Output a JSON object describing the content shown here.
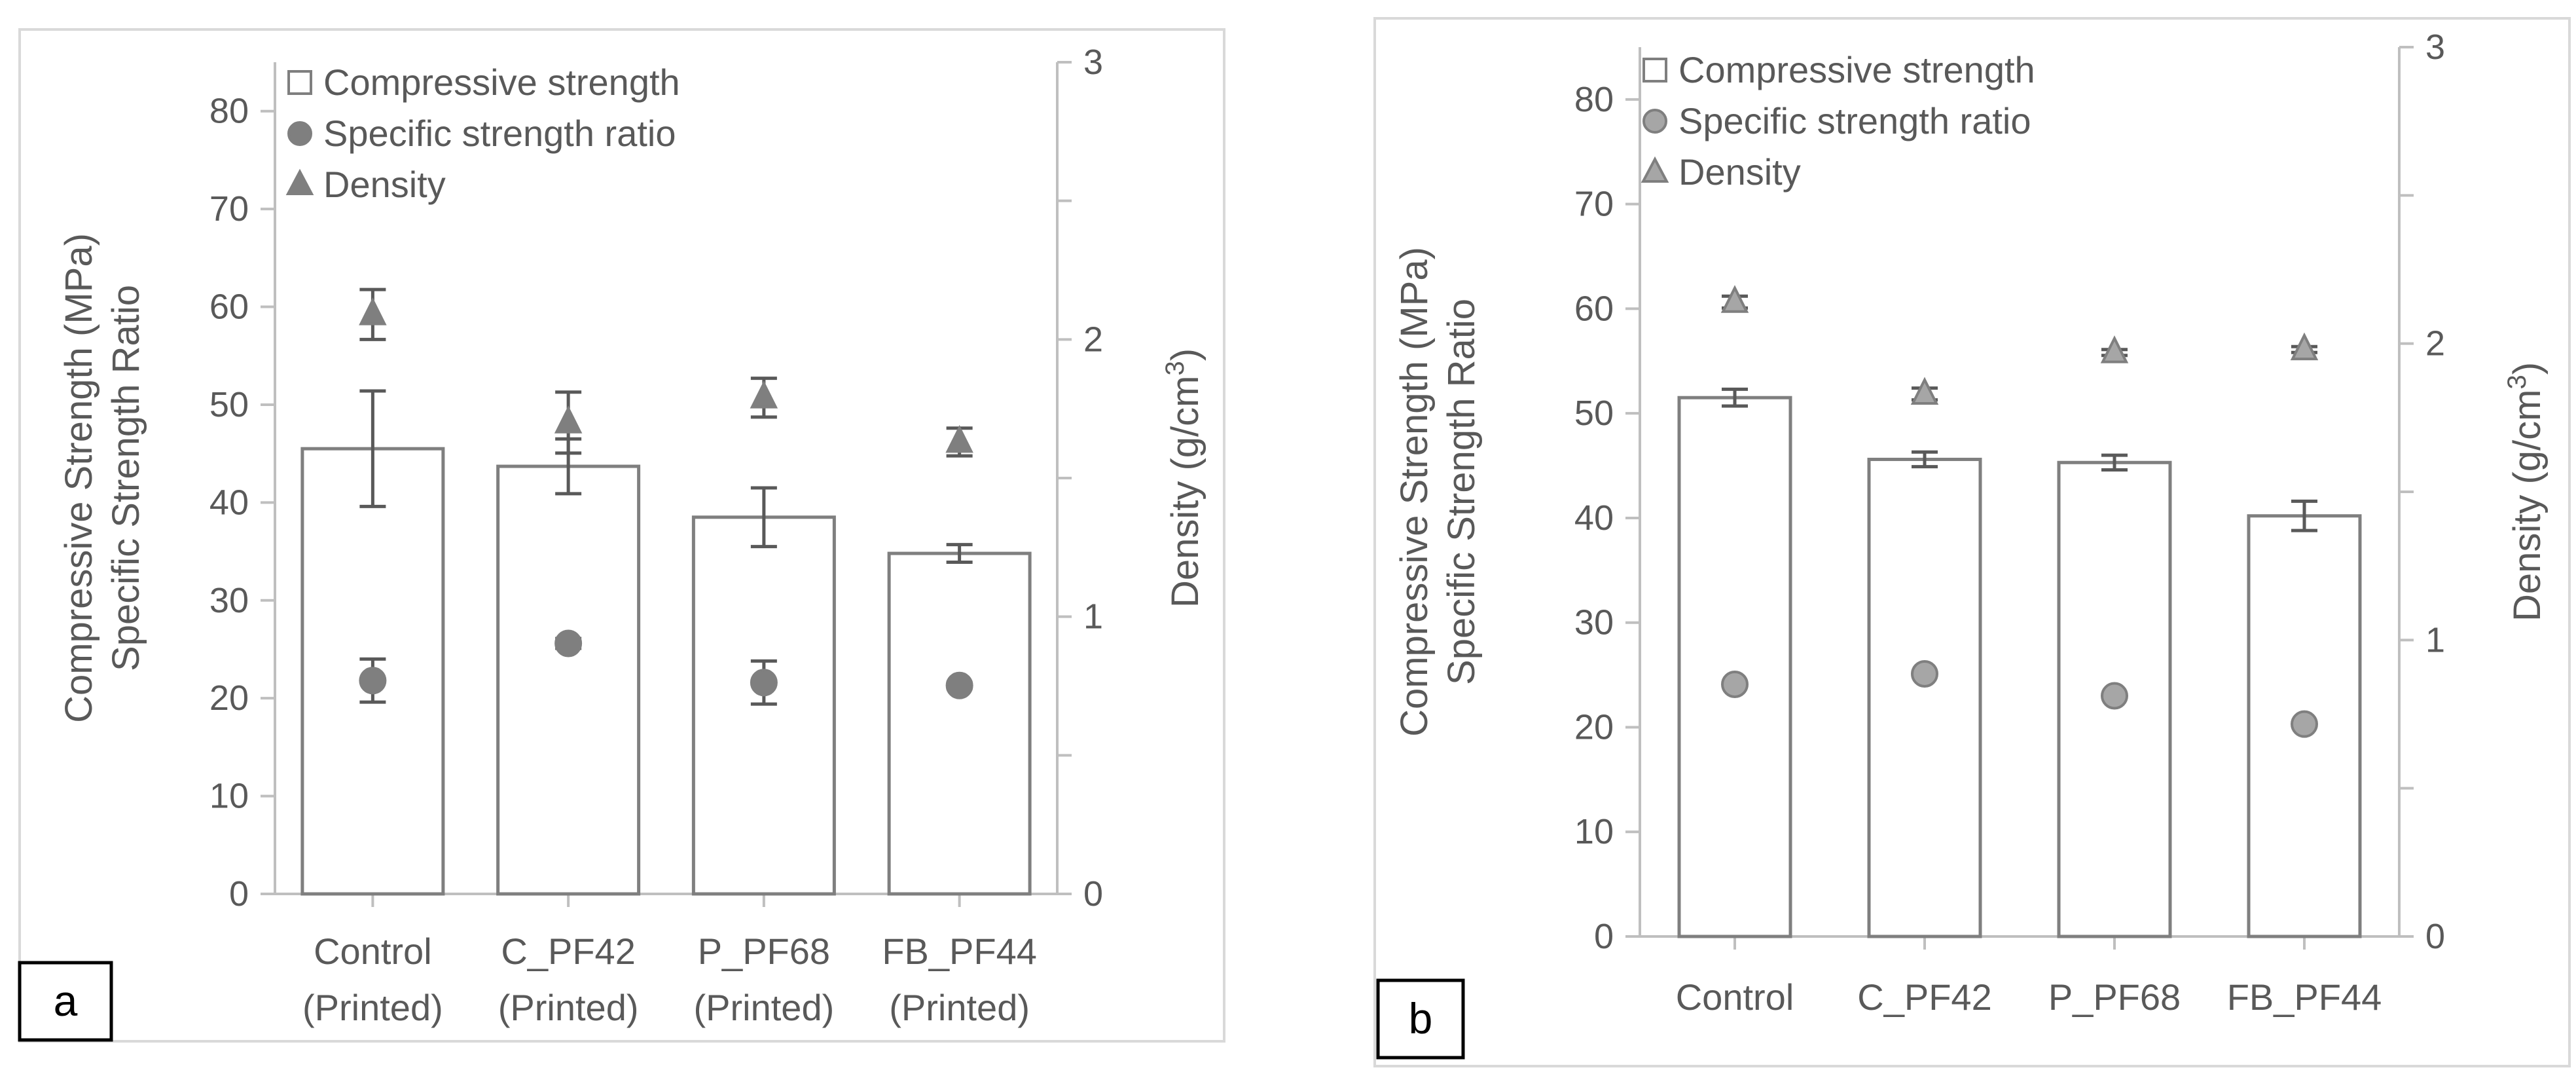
{
  "chart_data": [
    {
      "panel_label": "a",
      "type": "bar",
      "categories": [
        "Control\n(Printed)",
        "C_PF42\n(Printed)",
        "P_PF68\n(Printed)",
        "FB_PF44\n(Printed)"
      ],
      "ylabel": [
        "Compressive Strength (MPa)",
        "Specific Strength Ratio"
      ],
      "y2label": "Density (g/cm³)",
      "ylim": [
        0,
        85
      ],
      "yticks": [
        0,
        10,
        20,
        30,
        40,
        50,
        60,
        70,
        80
      ],
      "y2lim": [
        0,
        3
      ],
      "y2ticks": [
        0,
        1,
        2,
        3
      ],
      "legend": [
        "Compressive strength",
        "Specific strength ratio",
        "Density"
      ],
      "series": [
        {
          "name": "Compressive strength",
          "axis": "left",
          "kind": "bar",
          "values": [
            45.5,
            43.7,
            38.5,
            34.8
          ],
          "errors": [
            5.9,
            2.8,
            3.0,
            0.9
          ]
        },
        {
          "name": "Specific strength ratio",
          "axis": "left",
          "kind": "circle",
          "values": [
            21.8,
            25.6,
            21.6,
            21.3
          ],
          "errors": [
            2.2,
            0.5,
            2.2,
            0.3
          ]
        },
        {
          "name": "Density",
          "axis": "right",
          "kind": "triangle",
          "values": [
            2.09,
            1.7,
            1.79,
            1.63
          ],
          "errors": [
            0.09,
            0.11,
            0.07,
            0.05
          ]
        }
      ]
    },
    {
      "panel_label": "b",
      "type": "bar",
      "categories": [
        "Control",
        "C_PF42",
        "P_PF68",
        "FB_PF44"
      ],
      "ylabel": [
        "Compressive Strength (MPa)",
        "Specific Strength Ratio"
      ],
      "y2label": "Density (g/cm³)",
      "ylim": [
        0,
        85
      ],
      "yticks": [
        0,
        10,
        20,
        30,
        40,
        50,
        60,
        70,
        80
      ],
      "y2lim": [
        0,
        3
      ],
      "y2ticks": [
        0,
        1,
        2,
        3
      ],
      "legend": [
        "Compressive strength",
        "Specific strength ratio",
        "Density"
      ],
      "series": [
        {
          "name": "Compressive strength",
          "axis": "left",
          "kind": "bar",
          "values": [
            51.5,
            45.6,
            45.3,
            40.2
          ],
          "errors": [
            0.8,
            0.7,
            0.7,
            1.4
          ]
        },
        {
          "name": "Specific strength ratio",
          "axis": "left",
          "kind": "circle",
          "values": [
            24.1,
            25.1,
            23.0,
            20.3
          ],
          "errors": [
            0,
            0,
            0,
            0
          ]
        },
        {
          "name": "Density",
          "axis": "right",
          "kind": "triangle",
          "values": [
            2.14,
            1.83,
            1.97,
            1.98
          ],
          "errors": [
            0.02,
            0.02,
            0.01,
            0.01
          ]
        }
      ]
    }
  ],
  "colors": {
    "axis": "#bfbfbf",
    "text": "#595959",
    "bar_stroke": "#7f7f7f",
    "marker_a": "#7f7f7f",
    "marker_b": "#a6a6a6",
    "border": "#d9d9d9"
  }
}
